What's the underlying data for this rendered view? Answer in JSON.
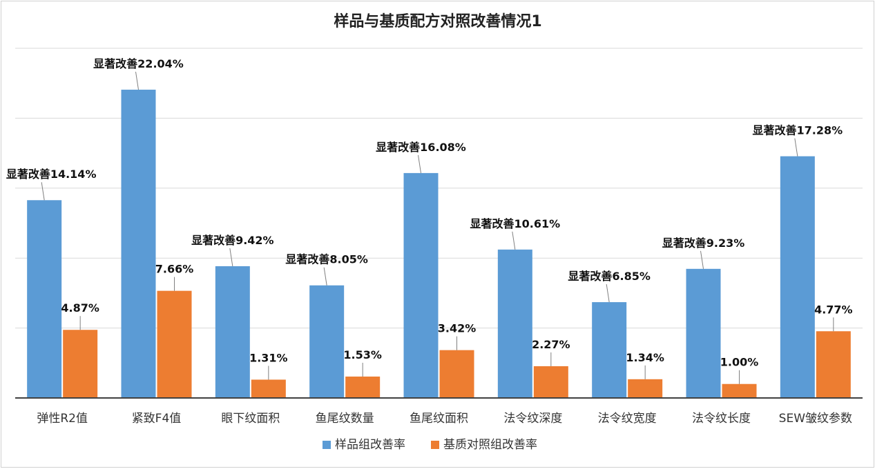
{
  "chart_data": {
    "type": "bar",
    "title": "样品与基质配方对照改善情况1",
    "categories": [
      "弹性R2值",
      "紧致F4值",
      "眼下纹面积",
      "鱼尾纹数量",
      "鱼尾纹面积",
      "法令纹深度",
      "法令纹宽度",
      "法令纹长度",
      "SEW皱纹参数"
    ],
    "series": [
      {
        "name": "样品组改善率",
        "color": "#5b9bd5",
        "values": [
          14.14,
          22.04,
          9.42,
          8.05,
          16.08,
          10.61,
          6.85,
          9.23,
          17.28
        ],
        "labels": [
          "显著改善14.14%",
          "显著改善22.04%",
          "显著改善9.42%",
          "显著改善8.05%",
          "显著改善16.08%",
          "显著改善10.61%",
          "显著改善6.85%",
          "显著改善9.23%",
          "显著改善17.28%"
        ]
      },
      {
        "name": "基质对照组改善率",
        "color": "#ed7d31",
        "values": [
          4.87,
          7.66,
          1.31,
          1.53,
          3.42,
          2.27,
          1.34,
          1.0,
          4.77
        ],
        "labels": [
          "4.87%",
          "7.66%",
          "1.31%",
          "1.53%",
          "3.42%",
          "2.27%",
          "1.34%",
          "1.00%",
          "4.77%"
        ]
      }
    ],
    "ylim": [
      0,
      25
    ],
    "grid": true,
    "legend": "bottom"
  }
}
